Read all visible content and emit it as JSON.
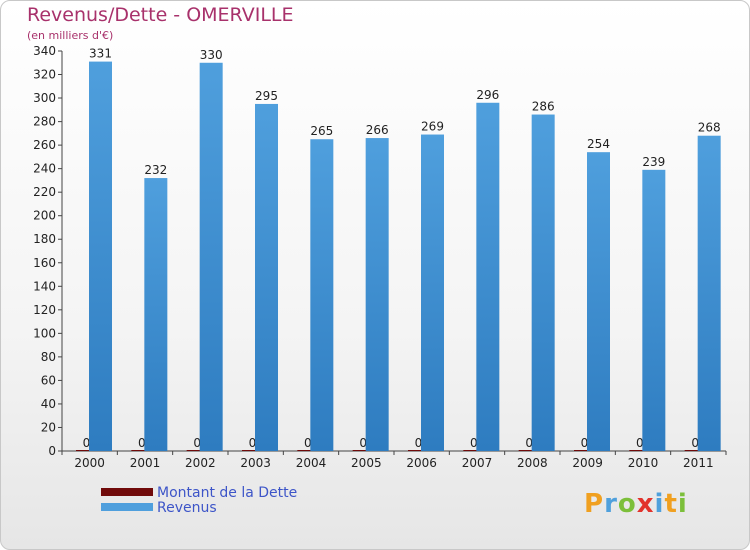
{
  "title": "Revenus/Dette - OMERVILLE",
  "subtitle": "(en milliers d'€)",
  "colors": {
    "debt": "#700a0a",
    "revenue": "#4f9fdd",
    "revenue_dark": "#2e7cc0",
    "title": "#a8316b",
    "legend_text": "#3d55c8"
  },
  "chart_data": {
    "type": "bar",
    "title": "Revenus/Dette - OMERVILLE",
    "ylabel": "(en milliers d'€)",
    "xlabel": "",
    "categories": [
      "2000",
      "2001",
      "2002",
      "2003",
      "2004",
      "2005",
      "2006",
      "2007",
      "2008",
      "2009",
      "2010",
      "2011"
    ],
    "series": [
      {
        "name": "Montant de la Dette",
        "values": [
          0,
          0,
          0,
          0,
          0,
          0,
          0,
          0,
          0,
          0,
          0,
          0
        ]
      },
      {
        "name": "Revenus",
        "values": [
          331,
          232,
          330,
          295,
          265,
          266,
          269,
          296,
          286,
          254,
          239,
          268
        ]
      }
    ],
    "ylim": [
      0,
      340
    ],
    "yticks": [
      0,
      20,
      40,
      60,
      80,
      100,
      120,
      140,
      160,
      180,
      200,
      220,
      240,
      260,
      280,
      300,
      320,
      340
    ],
    "grid": false,
    "legend_position": "bottom-left"
  },
  "legend": {
    "items": [
      {
        "label": "Montant de la Dette"
      },
      {
        "label": "Revenus"
      }
    ]
  },
  "logo": {
    "letters": [
      "P",
      "r",
      "o",
      "x",
      "i",
      "t",
      "i"
    ],
    "colors": [
      "#f0a020",
      "#4fa0dc",
      "#7cbf3a",
      "#e2332c",
      "#4fa0dc",
      "#f0a020",
      "#7cbf3a"
    ]
  }
}
